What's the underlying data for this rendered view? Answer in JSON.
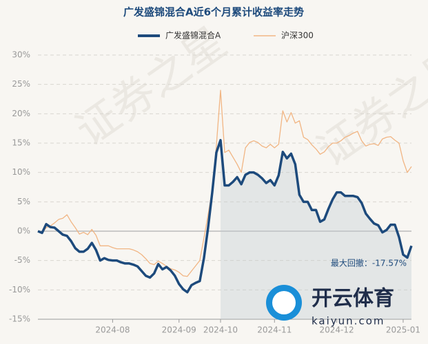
{
  "chart_data": {
    "type": "line",
    "title": "广发盛锦混合A近6个月累计收益率走势",
    "annotation": "最大回撤：-17.57%",
    "watermark": "证券之星",
    "logo_text": "开云体育",
    "logo_url": "kaiyun.com",
    "categories": [
      null,
      null,
      null,
      null,
      null,
      null,
      null,
      null,
      null,
      null,
      null,
      null,
      null,
      null,
      null,
      null,
      null,
      null,
      "2024-08",
      null,
      null,
      null,
      null,
      null,
      null,
      null,
      null,
      null,
      null,
      null,
      null,
      null,
      null,
      null,
      "2024-09",
      null,
      null,
      null,
      null,
      null,
      null,
      null,
      null,
      null,
      "2024-10",
      null,
      null,
      null,
      null,
      null,
      null,
      null,
      null,
      null,
      null,
      null,
      null,
      "2024-11",
      null,
      null,
      null,
      null,
      null,
      null,
      null,
      null,
      null,
      null,
      null,
      null,
      null,
      null,
      "2024-12",
      null,
      null,
      null,
      null,
      null,
      null,
      null,
      null,
      null,
      null,
      null,
      null,
      null,
      null,
      null,
      "2025-01",
      null,
      null
    ],
    "series": [
      {
        "name": "广发盛锦混合A",
        "color": "#1d4a7c",
        "values": [
          0,
          -0.3,
          1.2,
          0.7,
          0.6,
          0,
          -0.6,
          -0.8,
          -1.7,
          -2.9,
          -3.5,
          -3.5,
          -3,
          -2,
          -3.2,
          -5,
          -4.6,
          -4.9,
          -5,
          -5,
          -5.3,
          -5.5,
          -5.5,
          -5.7,
          -6,
          -6.8,
          -7.6,
          -7.9,
          -7.2,
          -5.6,
          -6.5,
          -6.1,
          -6.7,
          -7.6,
          -9,
          -9.9,
          -10.4,
          -9.2,
          -8.8,
          -8.5,
          -4.6,
          0.6,
          6.6,
          13.4,
          15.5,
          7.8,
          7.8,
          8.4,
          9.2,
          8,
          9.6,
          10,
          10,
          9.6,
          9,
          8.2,
          8.7,
          7.8,
          9.5,
          13.5,
          12.4,
          13.2,
          11.4,
          6.2,
          5,
          5,
          3.6,
          3.6,
          1.6,
          2,
          3.8,
          5.4,
          6.6,
          6.6,
          6,
          6,
          6,
          5.8,
          4.8,
          3,
          2.1,
          1.3,
          1,
          -0.2,
          0.2,
          1.1,
          1.1,
          -1,
          -4,
          -4.5,
          -2.5
        ]
      },
      {
        "name": "沪深300",
        "color": "#f1b583",
        "values": [
          0,
          -0.3,
          0.6,
          0.9,
          1.4,
          2,
          2.2,
          2.8,
          1.6,
          0.6,
          -0.5,
          -0.2,
          -0.6,
          0.3,
          -0.7,
          -2.5,
          -2.5,
          -2.5,
          -2.8,
          -3,
          -3,
          -3,
          -3,
          -3.2,
          -3.5,
          -4,
          -4.7,
          -5.5,
          -5.7,
          -5.1,
          -5.5,
          -6,
          -6.4,
          -6.6,
          -7,
          -7.6,
          -7.7,
          -6.8,
          -5.9,
          -5,
          -1.2,
          2.8,
          7,
          14.6,
          24,
          13.4,
          13.8,
          12.6,
          11.4,
          10,
          14.2,
          15.1,
          15.4,
          15.1,
          14.5,
          14.2,
          14.8,
          14.2,
          14.8,
          20.5,
          18.6,
          20.2,
          18.4,
          18.8,
          16,
          15.6,
          14.7,
          14,
          13.1,
          13.5,
          14.4,
          15,
          15,
          15.4,
          16,
          16.3,
          16.7,
          17,
          15.4,
          14.5,
          14.8,
          14.9,
          14.6,
          15.7,
          16,
          16.1,
          15.5,
          15,
          12,
          10,
          11
        ]
      }
    ],
    "ylim": [
      -15,
      30
    ],
    "yticks": [
      {
        "value": -15,
        "label": "-15%"
      },
      {
        "value": -10,
        "label": "-10%"
      },
      {
        "value": -5,
        "label": "-5%"
      },
      {
        "value": 0,
        "label": "0%"
      },
      {
        "value": 5,
        "label": "5%"
      },
      {
        "value": 10,
        "label": "10%"
      },
      {
        "value": 15,
        "label": "15%"
      },
      {
        "value": 20,
        "label": "20%"
      },
      {
        "value": 25,
        "label": "25%"
      },
      {
        "value": 30,
        "label": "30%"
      }
    ],
    "grid": true,
    "legend": "top"
  }
}
